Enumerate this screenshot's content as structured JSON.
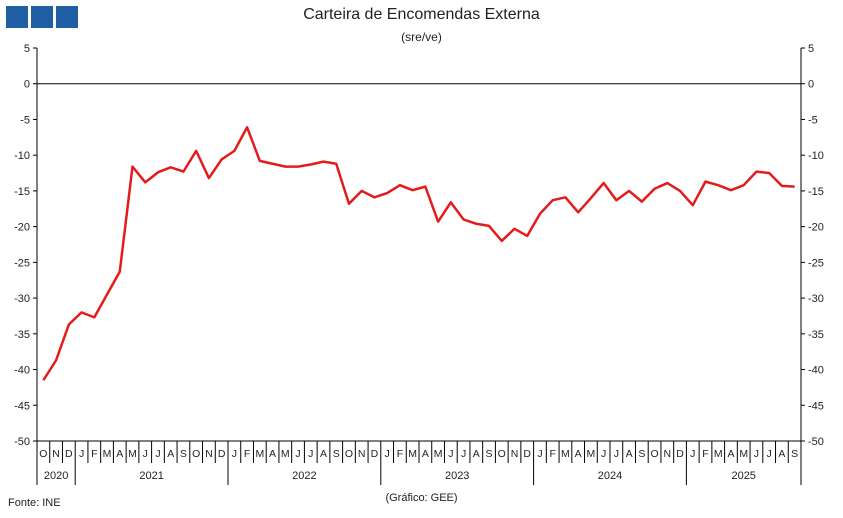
{
  "brand": {
    "color": "#1f5fa6",
    "icon": "three-squares-logo-icon"
  },
  "chart_data": {
    "type": "line",
    "title": "Carteira de Encomendas Externa",
    "subtitle": "(sre/ve)",
    "source": "Fonte: INE",
    "credit": "(Gráfico: GEE)",
    "ylim": [
      -50,
      5
    ],
    "yticks": [
      5,
      0,
      -5,
      -10,
      -15,
      -20,
      -25,
      -30,
      -35,
      -40,
      -45,
      -50
    ],
    "grid": false,
    "legend": "none",
    "line_color": "#e41b1b",
    "month_labels": [
      "O",
      "N",
      "D",
      "J",
      "F",
      "M",
      "A",
      "M",
      "J",
      "J",
      "A",
      "S",
      "O",
      "N",
      "D",
      "J",
      "F",
      "M",
      "A",
      "M",
      "J",
      "J",
      "A",
      "S",
      "O",
      "N",
      "D",
      "J",
      "F",
      "M",
      "A",
      "M",
      "J",
      "J",
      "A",
      "S",
      "O",
      "N",
      "D",
      "J",
      "F",
      "M",
      "A",
      "M",
      "J",
      "J",
      "A",
      "S",
      "O",
      "N",
      "D",
      "J",
      "F",
      "M",
      "A",
      "M",
      "J",
      "J",
      "A",
      "S"
    ],
    "years": [
      {
        "label": "2020",
        "start": 0,
        "count": 3
      },
      {
        "label": "2021",
        "start": 3,
        "count": 12
      },
      {
        "label": "2022",
        "start": 15,
        "count": 12
      },
      {
        "label": "2023",
        "start": 27,
        "count": 12
      },
      {
        "label": "2024",
        "start": 39,
        "count": 12
      },
      {
        "label": "2025",
        "start": 51,
        "count": 9
      }
    ],
    "series": [
      {
        "values": [
          -41.5,
          -38.7,
          -33.7,
          -32.0,
          -32.7,
          -29.5,
          -26.3,
          -11.6,
          -13.8,
          -12.4,
          -11.7,
          -12.3,
          -9.4,
          -13.2,
          -10.6,
          -9.4,
          -6.1,
          -10.8,
          -11.2,
          -11.6,
          -11.6,
          -11.3,
          -10.9,
          -11.2,
          -16.8,
          -15.0,
          -15.9,
          -15.3,
          -14.2,
          -14.9,
          -14.4,
          -19.3,
          -16.6,
          -19.0,
          -19.6,
          -19.9,
          -22.0,
          -20.3,
          -21.3,
          -18.2,
          -16.3,
          -15.9,
          -18.0,
          -16.0,
          -13.9,
          -16.3,
          -15.0,
          -16.5,
          -14.7,
          -13.9,
          -15.0,
          -17.0,
          -13.7,
          -14.2,
          -14.9,
          -14.2,
          -12.3,
          -12.5,
          -14.3,
          -14.4
        ]
      }
    ]
  }
}
